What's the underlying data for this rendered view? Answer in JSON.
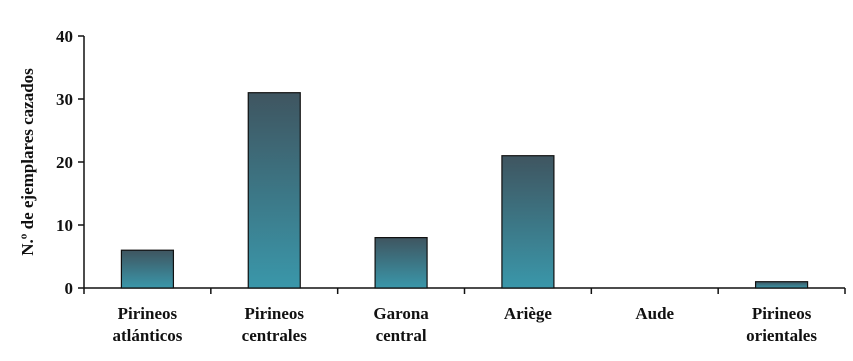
{
  "chart_data": {
    "type": "bar",
    "ylabel": "N.º de ejemplares cazados",
    "ylim": [
      0,
      40
    ],
    "yticks": [
      "0",
      "10",
      "20",
      "30",
      "40"
    ],
    "categories": [
      [
        "Pirineos",
        "atlánticos"
      ],
      [
        "Pirineos",
        "centrales"
      ],
      [
        "Garona",
        "central"
      ],
      [
        "Ariège"
      ],
      [
        "Aude"
      ],
      [
        "Pirineos",
        "orientales"
      ]
    ],
    "values": [
      6,
      31,
      8,
      21,
      0,
      1
    ],
    "colors": {
      "bar_top": "#3f5560",
      "bar_bottom": "#3a97aa",
      "bar_stroke": "#111111",
      "axis": "#111111"
    }
  }
}
